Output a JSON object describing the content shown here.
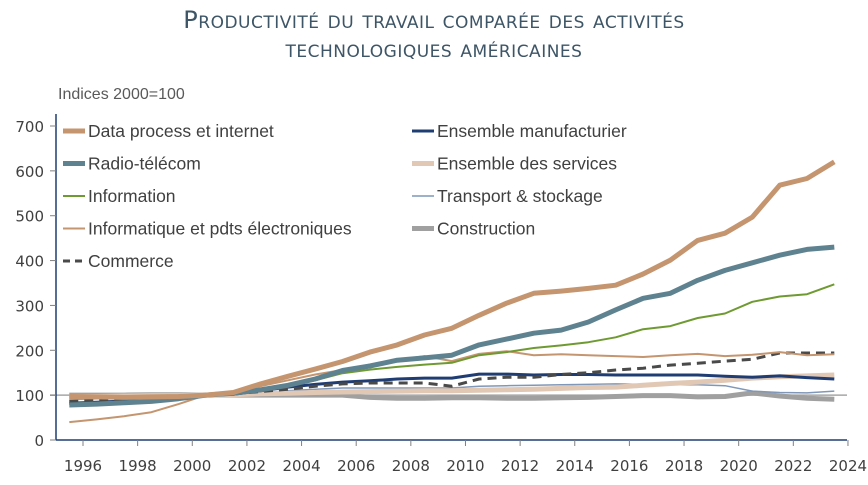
{
  "chart_data": {
    "type": "line",
    "title": "Productivité du travail comparée des activités technologiques américaines",
    "title_lines": [
      "Productivité du travail comparée des activités",
      "technologiques américaines"
    ],
    "subtitle": "Indices 2000=100",
    "xlabel": "",
    "ylabel": "",
    "ylim": [
      0,
      700
    ],
    "xlim": [
      1995,
      2024
    ],
    "yticks": [
      0,
      100,
      200,
      300,
      400,
      500,
      600,
      700
    ],
    "xticks": [
      1996,
      1998,
      2000,
      2002,
      2004,
      2006,
      2008,
      2010,
      2012,
      2014,
      2016,
      2018,
      2020,
      2022,
      2024
    ],
    "reference_line": 100,
    "grid": false,
    "legend_position": "top-left, two columns",
    "x": [
      1995.5,
      1996.5,
      1997.5,
      1998.5,
      1999.5,
      2000.5,
      2001.5,
      2002.5,
      2003.5,
      2004.5,
      2005.5,
      2006.5,
      2007.5,
      2008.5,
      2009.5,
      2010.5,
      2011.5,
      2012.5,
      2013.5,
      2014.5,
      2015.5,
      2016.5,
      2017.5,
      2018.5,
      2019.5,
      2020.5,
      2021.5,
      2022.5,
      2023.5
    ],
    "series": [
      {
        "name": "Data process et internet",
        "color": "#c4956f",
        "width": 5,
        "dash": "",
        "values": [
          97,
          96,
          95,
          96,
          97,
          100,
          106,
          125,
          142,
          158,
          175,
          196,
          212,
          234,
          249,
          278,
          305,
          327,
          332,
          338,
          345,
          370,
          401,
          445,
          461,
          497,
          568,
          583,
          620
        ]
      },
      {
        "name": "Radio-télécom",
        "color": "#5f8290",
        "width": 5,
        "dash": "",
        "values": [
          78,
          80,
          83,
          86,
          92,
          100,
          104,
          112,
          122,
          136,
          155,
          165,
          178,
          183,
          189,
          212,
          225,
          238,
          245,
          263,
          290,
          316,
          327,
          356,
          378,
          395,
          412,
          425,
          430
        ]
      },
      {
        "name": "Information",
        "color": "#6f9a32",
        "width": 2,
        "dash": "",
        "values": [
          81,
          83,
          85,
          88,
          93,
          100,
          103,
          110,
          120,
          133,
          149,
          157,
          163,
          168,
          172,
          189,
          196,
          205,
          211,
          218,
          229,
          247,
          254,
          272,
          282,
          308,
          320,
          325,
          347
        ]
      },
      {
        "name": "Informatique et pdts électroniques",
        "color": "#c4956f",
        "width": 2,
        "dash": "",
        "values": [
          40,
          46,
          53,
          62,
          80,
          100,
          108,
          120,
          133,
          146,
          156,
          168,
          178,
          187,
          176,
          192,
          198,
          189,
          191,
          189,
          187,
          185,
          189,
          192,
          187,
          190,
          196,
          189,
          191
        ]
      },
      {
        "name": "Commerce",
        "color": "#4a4a4a",
        "width": 3,
        "dash": "9,6",
        "values": [
          86,
          88,
          91,
          94,
          97,
          100,
          103,
          108,
          113,
          120,
          125,
          127,
          127,
          127,
          120,
          136,
          140,
          140,
          146,
          150,
          156,
          160,
          167,
          171,
          176,
          180,
          194,
          194,
          194
        ]
      },
      {
        "name": "Ensemble manufacturier",
        "color": "#1f3d73",
        "width": 3,
        "dash": "",
        "values": [
          82,
          84,
          87,
          90,
          94,
          100,
          102,
          110,
          118,
          124,
          129,
          132,
          136,
          138,
          138,
          147,
          147,
          145,
          146,
          146,
          145,
          145,
          145,
          145,
          142,
          140,
          143,
          139,
          136
        ]
      },
      {
        "name": "Ensemble des services",
        "color": "#e0c8b5",
        "width": 5,
        "dash": "",
        "values": [
          96,
          97,
          98,
          99,
          99,
          100,
          101,
          103,
          104,
          106,
          107,
          108,
          109,
          110,
          110,
          111,
          112,
          113,
          115,
          117,
          118,
          122,
          126,
          129,
          133,
          138,
          141,
          143,
          145
        ]
      },
      {
        "name": "Transport & stockage",
        "color": "#7f97b8",
        "width": 1.5,
        "dash": "",
        "values": [
          90,
          92,
          94,
          96,
          98,
          100,
          101,
          105,
          110,
          113,
          116,
          116,
          116,
          116,
          116,
          120,
          121,
          122,
          123,
          124,
          125,
          124,
          123,
          123,
          121,
          109,
          106,
          105,
          109
        ]
      },
      {
        "name": "Construction",
        "color": "#a0a0a0",
        "width": 5,
        "dash": "",
        "values": [
          100,
          100,
          100,
          101,
          101,
          100,
          100,
          100,
          100,
          100,
          100,
          95,
          93,
          93,
          94,
          94,
          93,
          93,
          94,
          95,
          97,
          99,
          99,
          96,
          97,
          105,
          98,
          93,
          91
        ]
      }
    ]
  },
  "legend": {
    "left": [
      "Data process et internet",
      "Radio-télécom",
      "Information",
      "Informatique et pdts électroniques",
      "Commerce"
    ],
    "right": [
      "Ensemble manufacturier",
      "Ensemble des services",
      "Transport & stockage",
      "Construction"
    ]
  },
  "colors": {
    "title": "#3d5566",
    "axis": "#1f3d73",
    "reference_line": "#a6a6a6",
    "tick_text": "#404040"
  }
}
